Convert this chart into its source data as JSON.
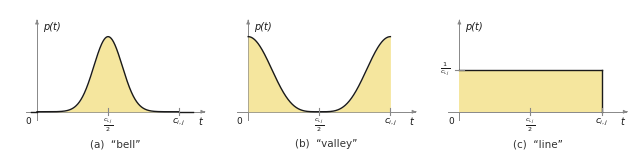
{
  "fill_color": "#f5e69e",
  "fill_alpha": 1.0,
  "line_color": "#1a1a1a",
  "axis_color": "#888888",
  "bg_color": "#ffffff",
  "caption_a": "(a)  “bell”",
  "caption_b": "(b)  “valley”",
  "caption_c": "(c)  “line”",
  "ylabel": "p(t)",
  "xlabel": "t",
  "label_0": "0",
  "label_cij2": "$\\frac{c_{i,j}}{2}$",
  "label_cij": "$c_{i,j}$",
  "label_1_cij": "$\\frac{1}{c_{i,j}}$"
}
